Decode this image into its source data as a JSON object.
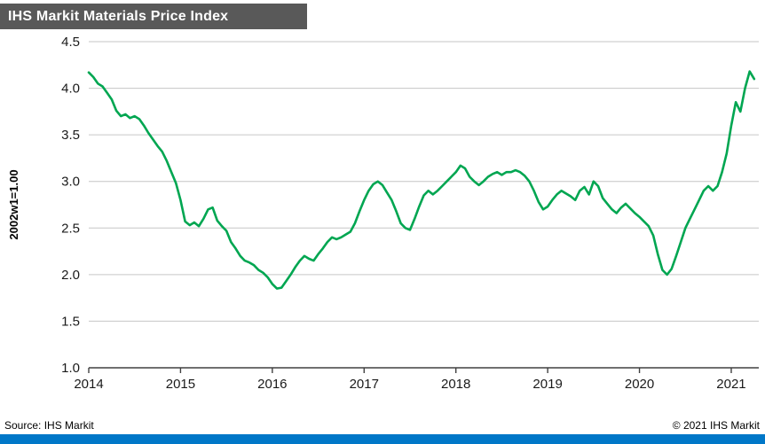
{
  "colors": {
    "title_bar_bg": "#595959",
    "footer_bar_bg": "#0077C8",
    "gridline": "#c6c6c6",
    "axis": "#404040",
    "line": "#00A651"
  },
  "chart_data": {
    "type": "line",
    "title": "IHS Markit Materials Price Index",
    "ylabel": "2002w1=1.00",
    "xlabel": "",
    "source": "Source: IHS Markit",
    "copyright": "© 2021 IHS Markit",
    "ylim": [
      1.0,
      4.5
    ],
    "ytick_step": 0.5,
    "xlim": [
      2014,
      2021.3
    ],
    "xticks": [
      2014,
      2015,
      2016,
      2017,
      2018,
      2019,
      2020,
      2021
    ],
    "grid": true,
    "legend_position": "none",
    "x_start": 2014.0,
    "x_step": 0.05,
    "series": [
      {
        "name": "Materials Price Index (2002w1=1.00)",
        "values": [
          4.17,
          4.12,
          4.05,
          4.02,
          3.95,
          3.88,
          3.76,
          3.7,
          3.72,
          3.68,
          3.7,
          3.67,
          3.6,
          3.52,
          3.45,
          3.38,
          3.32,
          3.22,
          3.1,
          2.98,
          2.8,
          2.57,
          2.53,
          2.56,
          2.52,
          2.6,
          2.7,
          2.72,
          2.58,
          2.52,
          2.47,
          2.35,
          2.28,
          2.2,
          2.15,
          2.13,
          2.1,
          2.05,
          2.02,
          1.97,
          1.9,
          1.85,
          1.86,
          1.93,
          2.0,
          2.08,
          2.15,
          2.2,
          2.17,
          2.15,
          2.22,
          2.28,
          2.35,
          2.4,
          2.38,
          2.4,
          2.43,
          2.46,
          2.55,
          2.68,
          2.8,
          2.9,
          2.97,
          3.0,
          2.96,
          2.88,
          2.8,
          2.68,
          2.55,
          2.5,
          2.48,
          2.6,
          2.73,
          2.85,
          2.9,
          2.86,
          2.9,
          2.95,
          3.0,
          3.05,
          3.1,
          3.17,
          3.14,
          3.05,
          3.0,
          2.96,
          3.0,
          3.05,
          3.08,
          3.1,
          3.07,
          3.1,
          3.1,
          3.12,
          3.1,
          3.06,
          3.0,
          2.9,
          2.78,
          2.7,
          2.73,
          2.8,
          2.86,
          2.9,
          2.87,
          2.84,
          2.8,
          2.9,
          2.94,
          2.86,
          3.0,
          2.95,
          2.82,
          2.76,
          2.7,
          2.66,
          2.72,
          2.76,
          2.71,
          2.66,
          2.62,
          2.57,
          2.52,
          2.42,
          2.22,
          2.05,
          2.0,
          2.06,
          2.2,
          2.35,
          2.5,
          2.6,
          2.7,
          2.8,
          2.9,
          2.95,
          2.9,
          2.95,
          3.1,
          3.3,
          3.6,
          3.85,
          3.75,
          4.0,
          4.18,
          4.1
        ]
      }
    ]
  }
}
